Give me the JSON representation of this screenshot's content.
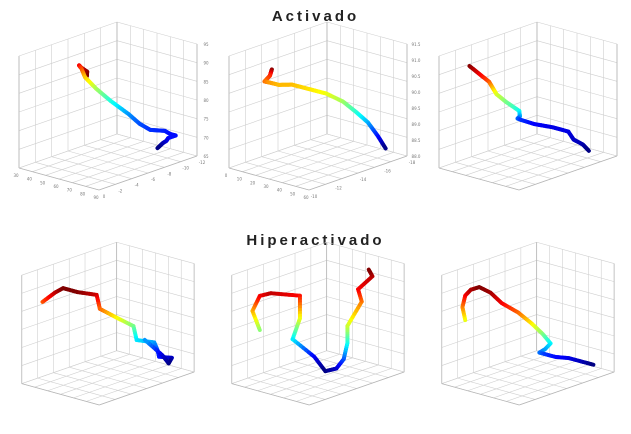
{
  "titles": {
    "top": "Activado",
    "bottom": "Hiperactivado"
  },
  "chart_data": [
    {
      "type": "line3d",
      "group": "Activado",
      "colormap": "jet",
      "x_ticks": [
        "30",
        "40",
        "50",
        "60",
        "70",
        "80",
        "90"
      ],
      "y_ticks": [
        "0",
        "-2",
        "-4",
        "-6",
        "-8",
        "-10",
        "-12"
      ],
      "z_ticks": [
        "65",
        "70",
        "75",
        "80",
        "85",
        "90",
        "95"
      ],
      "x": [
        78,
        74,
        68,
        62,
        57,
        54,
        52,
        54,
        58,
        64,
        70,
        76,
        80,
        83,
        85,
        86,
        86,
        85,
        83,
        80
      ],
      "y": [
        -1,
        -2,
        -3,
        -4,
        -5,
        -6,
        -7,
        -8,
        -9,
        -10,
        -10,
        -10,
        -11,
        -11,
        -11,
        -11,
        -10,
        -10,
        -10,
        -10
      ],
      "z": [
        95,
        95,
        94,
        93,
        92,
        90,
        86,
        82,
        78,
        74,
        72,
        71,
        70.5,
        70,
        70,
        70,
        70,
        69,
        68,
        66
      ]
    },
    {
      "type": "line3d",
      "group": "Activado",
      "colormap": "jet",
      "x_ticks": [
        "0",
        "10",
        "20",
        "30",
        "40",
        "50",
        "60"
      ],
      "y_ticks": [
        "-10",
        "-12",
        "-14",
        "-16",
        "-18"
      ],
      "z_ticks": [
        "88.0",
        "88.5",
        "89.0",
        "89.5",
        "90.0",
        "90.5",
        "91.0",
        "91.5"
      ],
      "x": [
        38,
        34,
        30,
        27,
        26,
        28,
        32,
        38,
        44,
        50,
        54,
        57,
        59,
        60
      ],
      "y": [
        -11,
        -11.5,
        -12,
        -12,
        -12.5,
        -13,
        -13.5,
        -14,
        -14.5,
        -15,
        -15.5,
        -16,
        -16.5,
        -17
      ],
      "z": [
        91.0,
        90.8,
        90.6,
        90.4,
        90.3,
        90.2,
        90.2,
        90.1,
        90.0,
        89.8,
        89.5,
        89.2,
        88.8,
        88.4
      ]
    },
    {
      "type": "line3d",
      "group": "Activado",
      "colormap": "jet",
      "x_ticks": [],
      "y_ticks": [],
      "z_ticks": [],
      "x": [
        44,
        45,
        46,
        45,
        44,
        45,
        47,
        45,
        42,
        41,
        43,
        47,
        52,
        56,
        59,
        61
      ],
      "y": [
        -2,
        -3,
        -4,
        -5,
        -6,
        -7,
        -8,
        -9,
        -10,
        -11,
        -12,
        -13,
        -13,
        -12,
        -12,
        -12
      ],
      "z": [
        98,
        94,
        90,
        86,
        82,
        78,
        74,
        70,
        67,
        65,
        63,
        62,
        62,
        61,
        60,
        58
      ]
    },
    {
      "type": "line3d",
      "group": "Hiperactivado",
      "colormap": "jet",
      "x_ticks": [],
      "y_ticks": [],
      "z_ticks": [],
      "x": [
        30,
        34,
        38,
        43,
        48,
        52,
        55,
        57,
        58,
        60,
        62,
        64,
        66,
        67,
        66,
        64,
        60,
        58
      ],
      "y": [
        -4,
        -4,
        -4,
        -4,
        -4,
        -4,
        -5,
        -5,
        -6,
        -7,
        -7,
        -8,
        -8,
        -8,
        -9,
        -9,
        -9,
        -8
      ],
      "z": [
        80,
        81,
        82,
        83,
        83,
        83,
        82,
        80,
        78,
        76,
        74,
        73,
        72,
        71,
        70,
        69,
        70,
        73
      ]
    },
    {
      "type": "line3d",
      "group": "Hiperactivado",
      "colormap": "jet",
      "x_ticks": [],
      "y_ticks": [],
      "z_ticks": [],
      "x": [
        44,
        42,
        44,
        47,
        50,
        50,
        48,
        49,
        52,
        55,
        57,
        58,
        58,
        57,
        56,
        55,
        54
      ],
      "y": [
        -6,
        -6,
        -6,
        -6,
        -7,
        -7,
        -7,
        -8,
        -8,
        -8,
        -8,
        -8,
        -8,
        -9,
        -9,
        -10,
        -10
      ],
      "z": [
        78,
        81,
        84,
        85,
        84,
        80,
        76,
        72,
        70,
        71,
        73,
        76,
        79,
        82,
        84,
        85,
        86
      ]
    },
    {
      "type": "line3d",
      "group": "Hiperactivado",
      "colormap": "jet",
      "x_ticks": [],
      "y_ticks": [],
      "z_ticks": [],
      "x": [
        41,
        40,
        41,
        43,
        46,
        50,
        54,
        57,
        59,
        60,
        60,
        58,
        56,
        55,
        56,
        58,
        60,
        61
      ],
      "y": [
        -3,
        -3,
        -3,
        -3,
        -3,
        -3,
        -3,
        -4,
        -5,
        -6,
        -7,
        -7,
        -7,
        -8,
        -9,
        -10,
        -11,
        -12
      ],
      "z": [
        80,
        85,
        90,
        93,
        95,
        94,
        91,
        87,
        82,
        77,
        72,
        69,
        67,
        65,
        63,
        62,
        60,
        58
      ]
    }
  ]
}
